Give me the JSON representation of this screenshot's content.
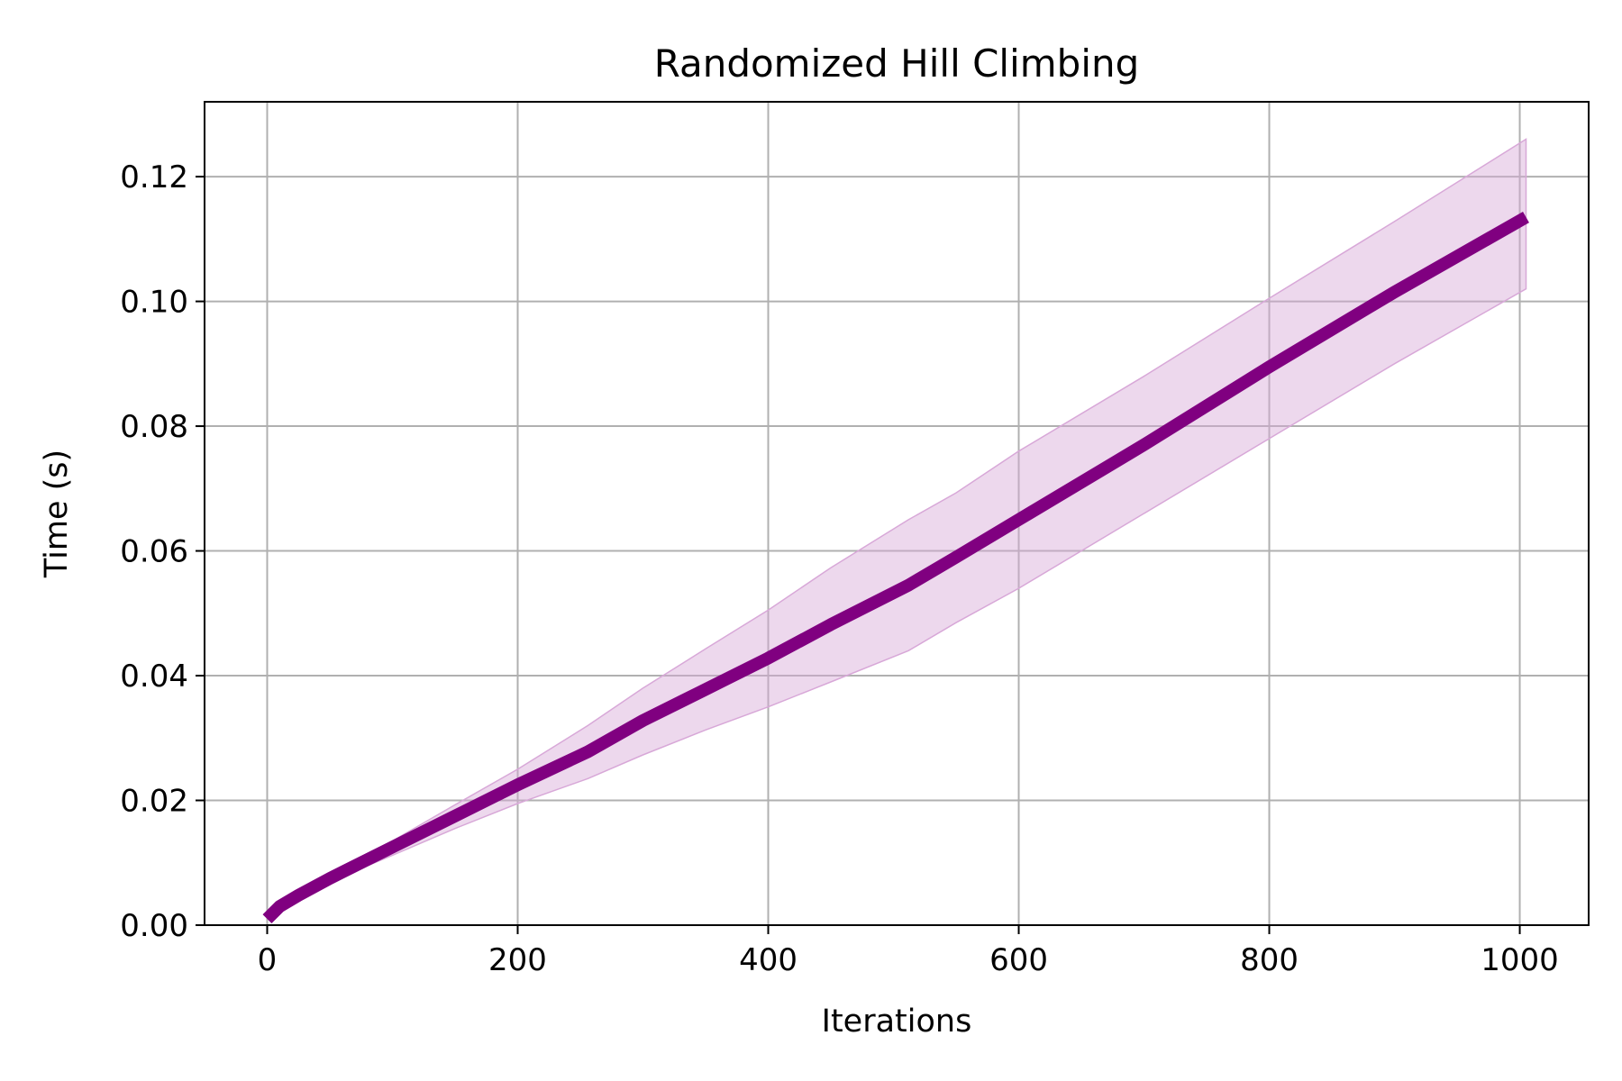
{
  "chart_data": {
    "type": "line",
    "title": "Randomized Hill Climbing",
    "xlabel": "Iterations",
    "ylabel": "Time (s)",
    "xlim": [
      -50,
      1055
    ],
    "ylim": [
      0,
      0.132
    ],
    "x_ticks": [
      0,
      200,
      400,
      600,
      800,
      1000
    ],
    "y_ticks": [
      0.0,
      0.02,
      0.04,
      0.06,
      0.08,
      0.1,
      0.12
    ],
    "x_tick_labels": [
      "0",
      "200",
      "400",
      "600",
      "800",
      "1000"
    ],
    "y_tick_labels": [
      "0.00",
      "0.02",
      "0.04",
      "0.06",
      "0.08",
      "0.10",
      "0.12"
    ],
    "grid": true,
    "line_color": "#800080",
    "band_color": "#d8a8d8",
    "series": [
      {
        "x": [
          0,
          10,
          25,
          50,
          100,
          150,
          200,
          256,
          300,
          350,
          400,
          450,
          512,
          550,
          600,
          700,
          800,
          900,
          1005
        ],
        "y": [
          0.001,
          0.003,
          0.0048,
          0.0075,
          0.0125,
          0.0175,
          0.0225,
          0.0278,
          0.0328,
          0.0378,
          0.0428,
          0.0482,
          0.0545,
          0.059,
          0.065,
          0.077,
          0.0895,
          0.1015,
          0.1135
        ],
        "y_lower": [
          0.001,
          0.0028,
          0.0045,
          0.007,
          0.0112,
          0.0155,
          0.0195,
          0.0235,
          0.0273,
          0.0313,
          0.035,
          0.039,
          0.044,
          0.0485,
          0.054,
          0.066,
          0.078,
          0.09,
          0.102
        ],
        "y_upper": [
          0.001,
          0.0032,
          0.0052,
          0.008,
          0.0135,
          0.0193,
          0.025,
          0.032,
          0.038,
          0.0443,
          0.0505,
          0.0573,
          0.065,
          0.0693,
          0.076,
          0.088,
          0.1005,
          0.1128,
          0.126
        ]
      }
    ]
  }
}
